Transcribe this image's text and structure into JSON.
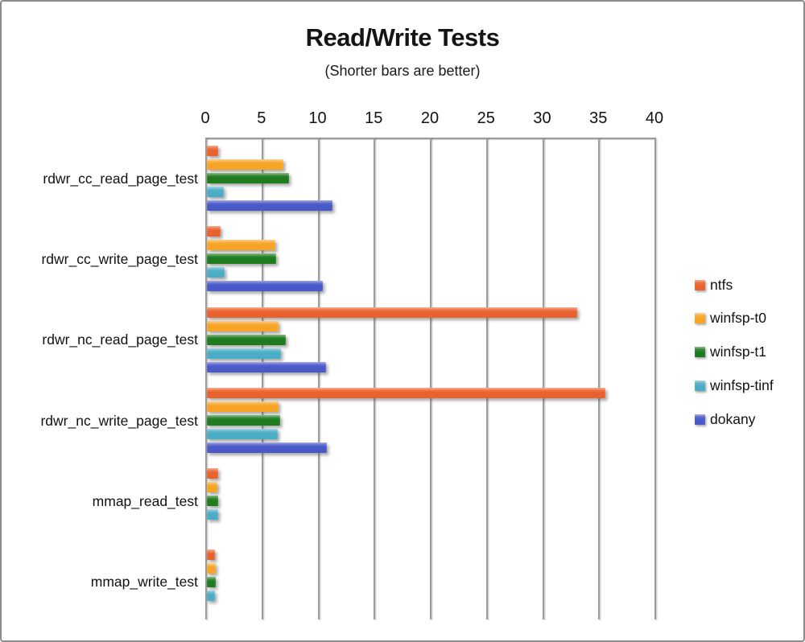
{
  "chart_data": {
    "type": "bar",
    "orientation": "horizontal",
    "title": "Read/Write Tests",
    "subtitle": "(Shorter bars are better)",
    "note": "shorter bars are better",
    "categories": [
      "rdwr_cc_read_page_test",
      "rdwr_cc_write_page_test",
      "rdwr_nc_read_page_test",
      "rdwr_nc_write_page_test",
      "mmap_read_test",
      "mmap_write_test"
    ],
    "series": [
      {
        "name": "ntfs",
        "color": "#E9622E",
        "values": [
          1.0,
          1.2,
          33.0,
          35.5,
          1.0,
          0.7
        ]
      },
      {
        "name": "winfsp-t0",
        "color": "#F7A426",
        "values": [
          6.8,
          6.1,
          6.4,
          6.4,
          0.9,
          0.8
        ]
      },
      {
        "name": "winfsp-t1",
        "color": "#1E7C1E",
        "values": [
          7.3,
          6.2,
          7.0,
          6.5,
          1.0,
          0.8
        ]
      },
      {
        "name": "winfsp-tinf",
        "color": "#4BACC6",
        "values": [
          1.5,
          1.6,
          6.6,
          6.3,
          1.0,
          0.7
        ]
      },
      {
        "name": "dokany",
        "color": "#4A59C8",
        "values": [
          11.2,
          10.3,
          10.6,
          10.7,
          0,
          0
        ]
      }
    ],
    "xlim": [
      0,
      40
    ],
    "xticks": [
      0,
      5,
      10,
      15,
      20,
      25,
      30,
      35,
      40
    ],
    "grid": true,
    "legend_position": "right",
    "axis_color": "#9C9C9C",
    "text_color": "#111111"
  }
}
